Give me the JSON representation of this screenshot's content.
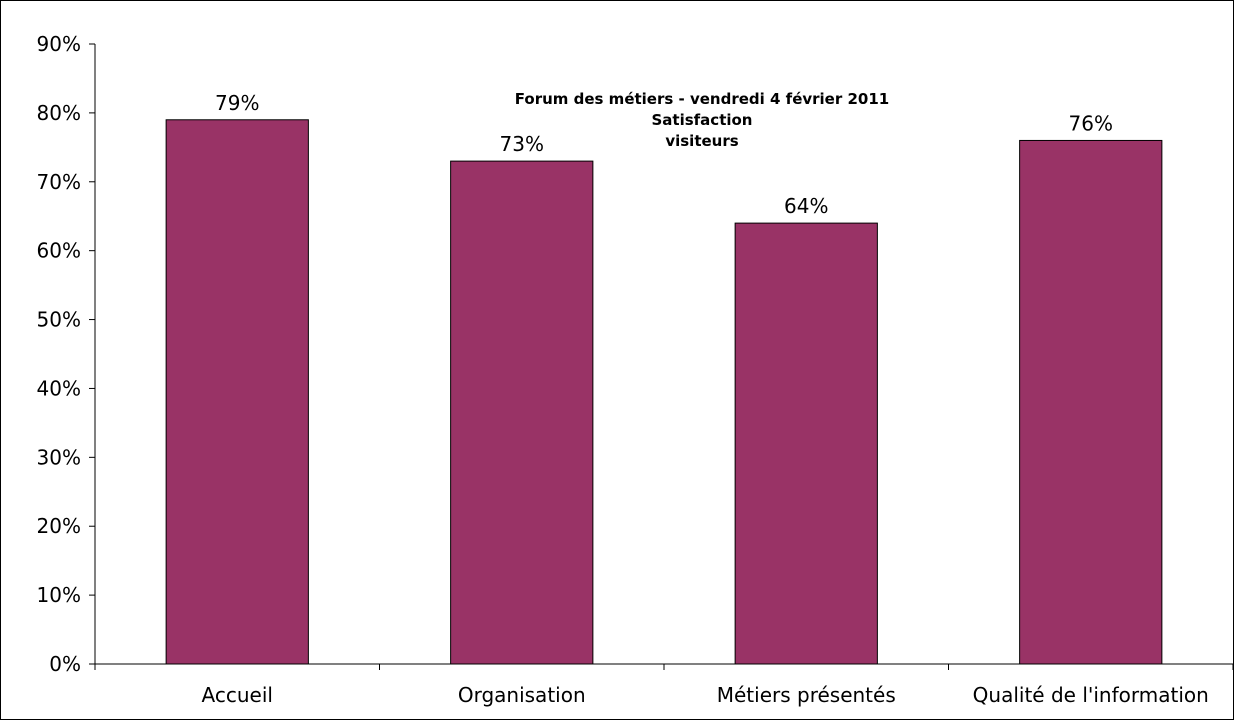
{
  "chart_data": {
    "type": "bar",
    "title_lines": [
      "Forum des métiers - vendredi 4 février 2011",
      "Satisfaction",
      "visiteurs"
    ],
    "categories": [
      "Accueil",
      "Organisation",
      "Métiers présentés",
      "Qualité de l'information"
    ],
    "values": [
      79,
      73,
      64,
      76
    ],
    "data_labels": [
      "79%",
      "73%",
      "64%",
      "76%"
    ],
    "y_ticks": [
      0,
      10,
      20,
      30,
      40,
      50,
      60,
      70,
      80,
      90
    ],
    "y_tick_labels": [
      "0%",
      "10%",
      "20%",
      "30%",
      "40%",
      "50%",
      "60%",
      "70%",
      "80%",
      "90%"
    ],
    "ylim": [
      0,
      90
    ],
    "xlabel": "",
    "ylabel": "",
    "grid": false,
    "legend": "none",
    "bar_color": "#993366"
  }
}
